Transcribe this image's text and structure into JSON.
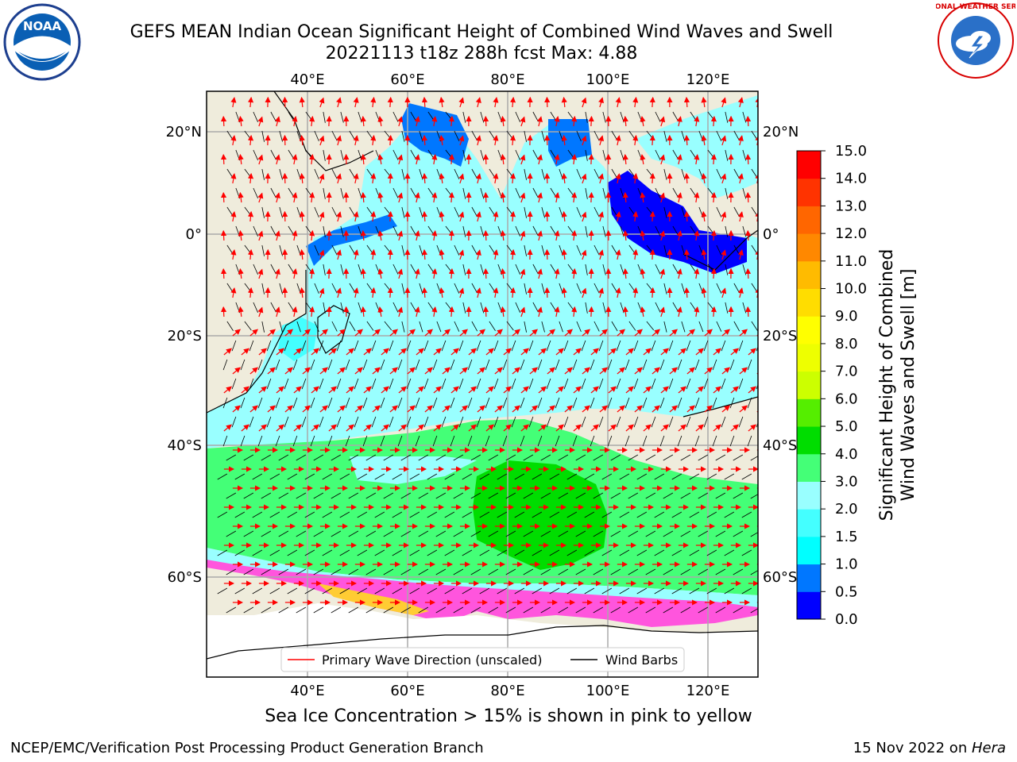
{
  "header": {
    "title_line1": "GEFS MEAN Indian Ocean Significant Height of Combined Wind Waves and Swell",
    "title_line2": "20221113 t18z 288h fcst   Max: 4.88"
  },
  "logos": {
    "left": {
      "name": "noaa-logo",
      "text": "NOAA"
    },
    "right": {
      "name": "nws-logo",
      "text": "NATIONAL WEATHER SERVICE"
    }
  },
  "map": {
    "top_lon_ticks": [
      "40°E",
      "60°E",
      "80°E",
      "100°E",
      "120°E"
    ],
    "bottom_lon_ticks": [
      "40°E",
      "60°E",
      "80°E",
      "100°E",
      "120°E"
    ],
    "left_lat_ticks": [
      "20°N",
      "0°",
      "20°S",
      "40°S",
      "60°S"
    ],
    "right_lat_ticks": [
      "20°N",
      "0°",
      "20°S",
      "40°S",
      "60°S"
    ],
    "legend": {
      "wave_label": "Primary Wave Direction (unscaled)",
      "wave_color": "#ff0000",
      "barb_label": "Wind Barbs",
      "barb_color": "#000000"
    },
    "land_color": "#efecdc"
  },
  "colorbar": {
    "label_line1": "Significant Height of Combined",
    "label_line2": "Wind Waves and Swell [m]",
    "ticks": [
      "0.0",
      "0.5",
      "1.0",
      "1.5",
      "2.0",
      "3.0",
      "4.0",
      "5.0",
      "6.0",
      "7.0",
      "8.0",
      "9.0",
      "10.0",
      "11.0",
      "12.0",
      "13.0",
      "14.0",
      "15.0"
    ],
    "colors": [
      "#0000ff",
      "#0077ff",
      "#00ffff",
      "#44ffff",
      "#99ffff",
      "#44ff77",
      "#00dd00",
      "#55ee00",
      "#ccff00",
      "#eeff00",
      "#ffff00",
      "#ffdd00",
      "#ffbb00",
      "#ff8800",
      "#ff6600",
      "#ff3300",
      "#ff0000"
    ]
  },
  "footnote": "Sea Ice Concentration > 15% is shown in pink to yellow",
  "footer": {
    "left": "NCEP/EMC/Verification Post Processing Product Generation Branch",
    "right_date": "15 Nov 2022 on ",
    "right_host": "Hera"
  }
}
